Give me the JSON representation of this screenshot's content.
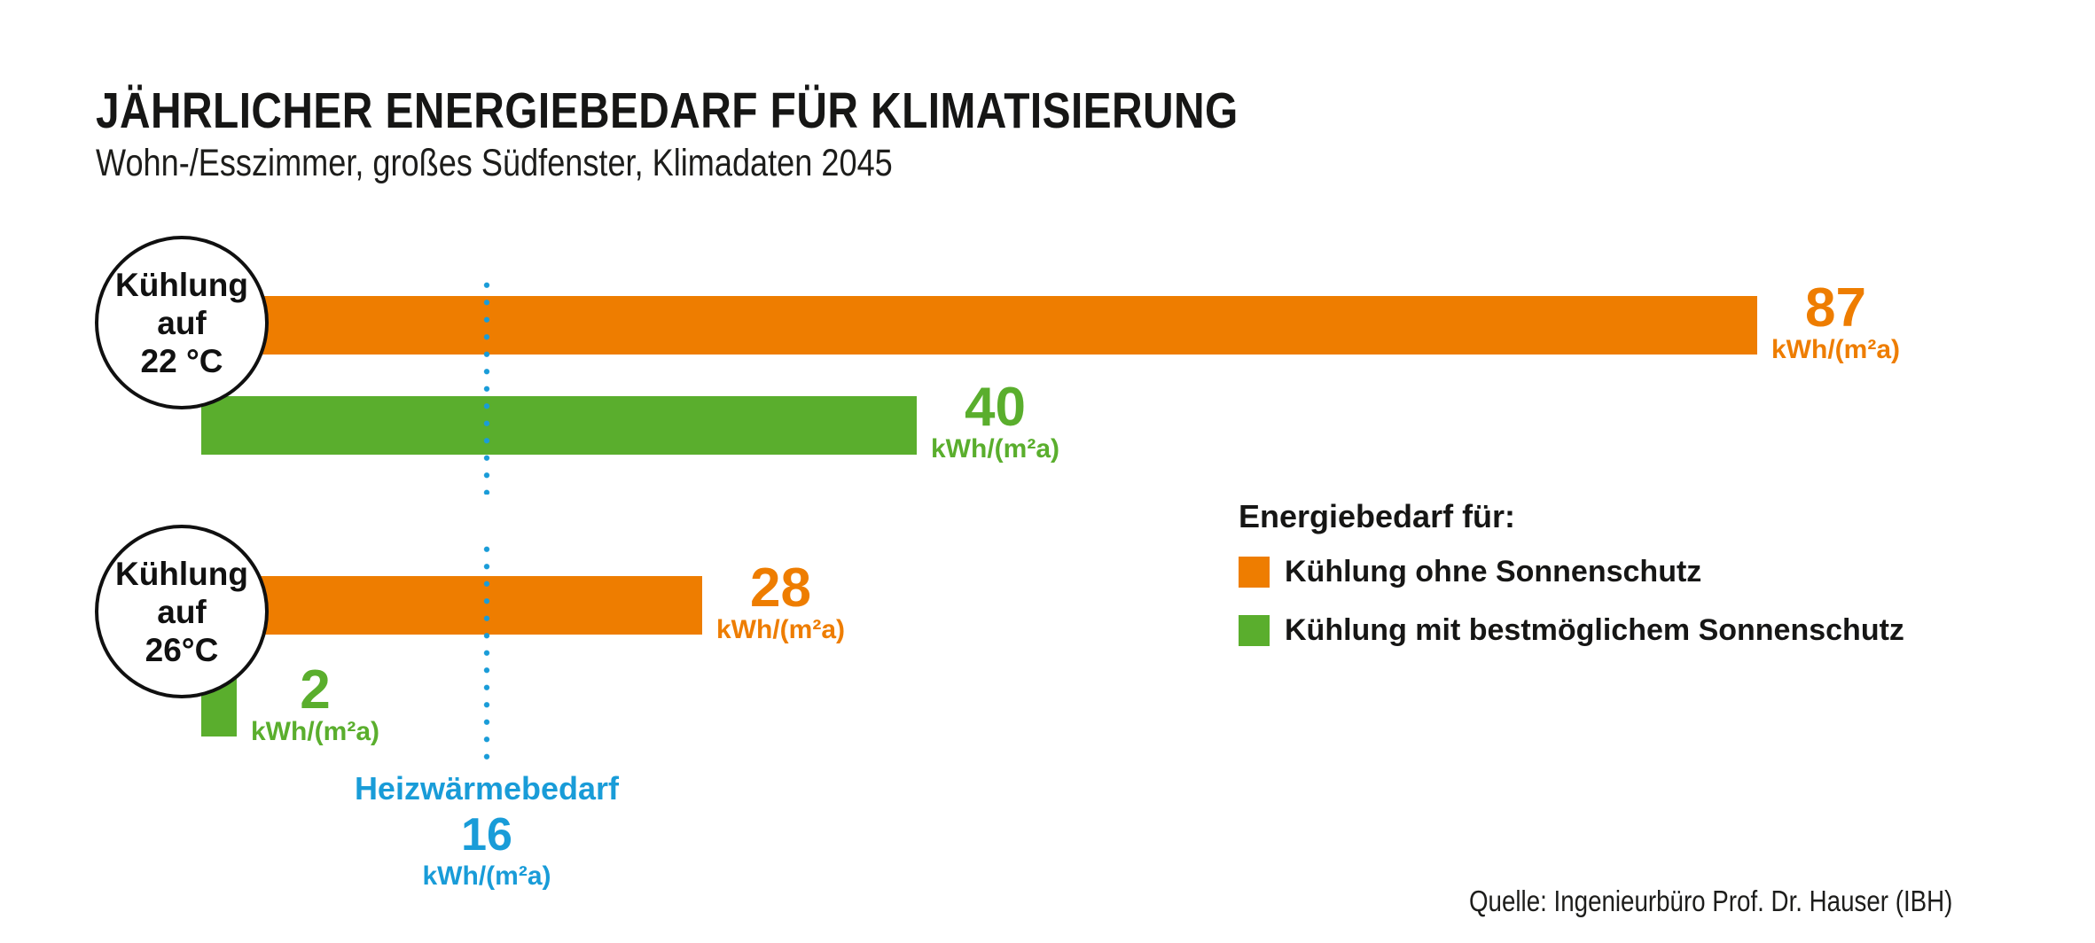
{
  "title": "JÄHRLICHER ENERGIEBEDARF FÜR KLIMATISIERUNG",
  "subtitle": "Wohn-/Esszimmer, großes Südfenster, Klimadaten 2045",
  "source": "Quelle: Ingenieurbüro Prof. Dr. Hauser (IBH)",
  "colors": {
    "orange": "#EE7D00",
    "green": "#5AAE2D",
    "blue": "#199CD8",
    "text": "#1A1A1A",
    "background": "#FFFFFF"
  },
  "legend": {
    "title": "Energiebedarf für:"
  },
  "chart_data": {
    "type": "bar",
    "orientation": "horizontal",
    "title": "JÄHRLICHER ENERGIEBEDARF FÜR KLIMATISIERUNG",
    "subtitle": "Wohn-/Esszimmer, großes Südfenster, Klimadaten 2045",
    "value_unit": "kWh/(m²a)",
    "xlim": [
      0,
      90
    ],
    "grid": false,
    "legend_position": "right",
    "categories": [
      "Kühlung auf 22 °C",
      "Kühlung auf 26°C"
    ],
    "category_lines": [
      [
        "Kühlung",
        "auf",
        "22 °C"
      ],
      [
        "Kühlung",
        "auf",
        "26°C"
      ]
    ],
    "series": [
      {
        "name": "Kühlung ohne Sonnenschutz",
        "color": "#EE7D00",
        "values": [
          87,
          28
        ]
      },
      {
        "name": "Kühlung mit bestmöglichem Sonnenschutz",
        "color": "#5AAE2D",
        "values": [
          40,
          2
        ]
      }
    ],
    "reference_line": {
      "label": "Heizwärmebedarf",
      "value": 16,
      "unit": "kWh/(m²a)",
      "color": "#199CD8",
      "style": "vertical-dotted"
    }
  }
}
